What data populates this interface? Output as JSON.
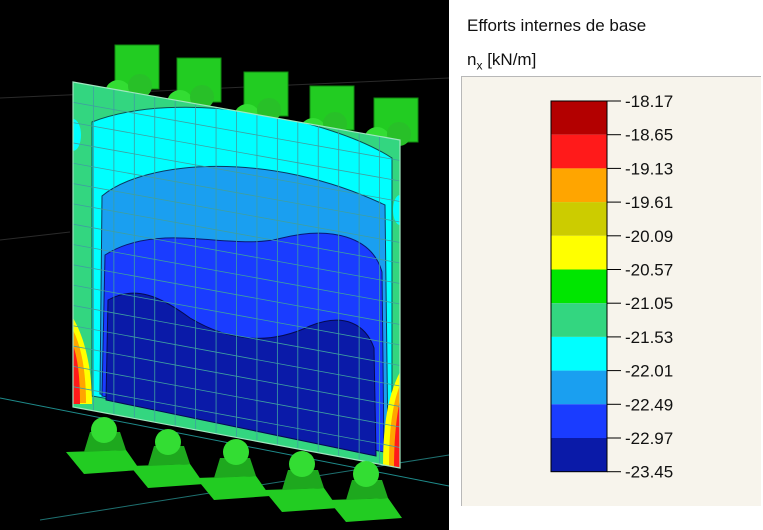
{
  "panel": {
    "title": "Efforts internes de base",
    "quantity_symbol": "n",
    "quantity_subscript": "x",
    "quantity_unit": " [kN/m]"
  },
  "legend": {
    "values": [
      "-18.17",
      "-18.65",
      "-19.13",
      "-19.61",
      "-20.09",
      "-20.57",
      "-21.05",
      "-21.53",
      "-22.01",
      "-22.49",
      "-22.97",
      "-23.45"
    ],
    "colors": [
      "#b30000",
      "#ff1a1a",
      "#ffa500",
      "#cccc00",
      "#ffff00",
      "#00e600",
      "#33d680",
      "#00ffff",
      "#1a9ff0",
      "#1a3cff",
      "#0a1aa8"
    ]
  },
  "viewport": {
    "background": "#000000",
    "support_color": "#22cc22",
    "plate_colors": {
      "border_band": "#33d680",
      "cyan": "#00ffff",
      "light_blue": "#1a9ff0",
      "blue": "#1a3cff",
      "dark_blue": "#0a1aa8",
      "mesh": "#3f9fa0"
    }
  }
}
